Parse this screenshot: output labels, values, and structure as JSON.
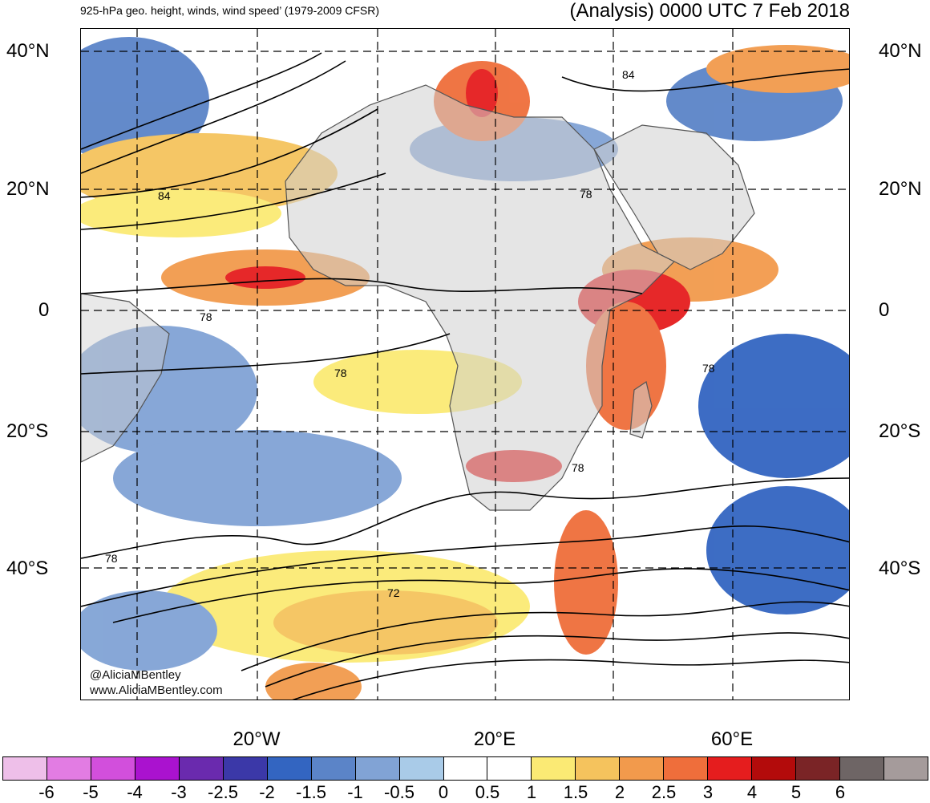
{
  "header": {
    "left_title": "925-hPa geo. height, winds, wind speed’ (1979-2009 CFSR)",
    "right_title": "(Analysis) 0000 UTC 7 Feb 2018"
  },
  "map": {
    "lat_labels": [
      "40°N",
      "20°N",
      "0",
      "20°S",
      "40°S"
    ],
    "lon_labels": [
      "20°W",
      "20°E",
      "60°E"
    ],
    "contour_labels": [
      "84",
      "84",
      "78",
      "78",
      "78",
      "78",
      "78",
      "78",
      "72"
    ],
    "credits": [
      "@AliciaMBentley",
      "www.AliciaMBentley.com"
    ]
  },
  "colorbar": {
    "colors": [
      "#eebfe9",
      "#e27ce3",
      "#d24fdc",
      "#aa12cf",
      "#6a2aae",
      "#3b38a8",
      "#3365c1",
      "#5b84c8",
      "#81a3d5",
      "#a9cbe8",
      "#ffffff",
      "#ffffff",
      "#fbea74",
      "#f5c35d",
      "#f29a4c",
      "#ef6e3b",
      "#e51d1e",
      "#b30b0b",
      "#7a2426",
      "#6e6565",
      "#a59b9b"
    ],
    "ticks": [
      "-6",
      "-5",
      "-4",
      "-3",
      "-2.5",
      "-2",
      "-1.5",
      "-1",
      "-0.5",
      "0",
      "0.5",
      "1",
      "1.5",
      "2",
      "2.5",
      "3",
      "4",
      "5",
      "6"
    ]
  }
}
